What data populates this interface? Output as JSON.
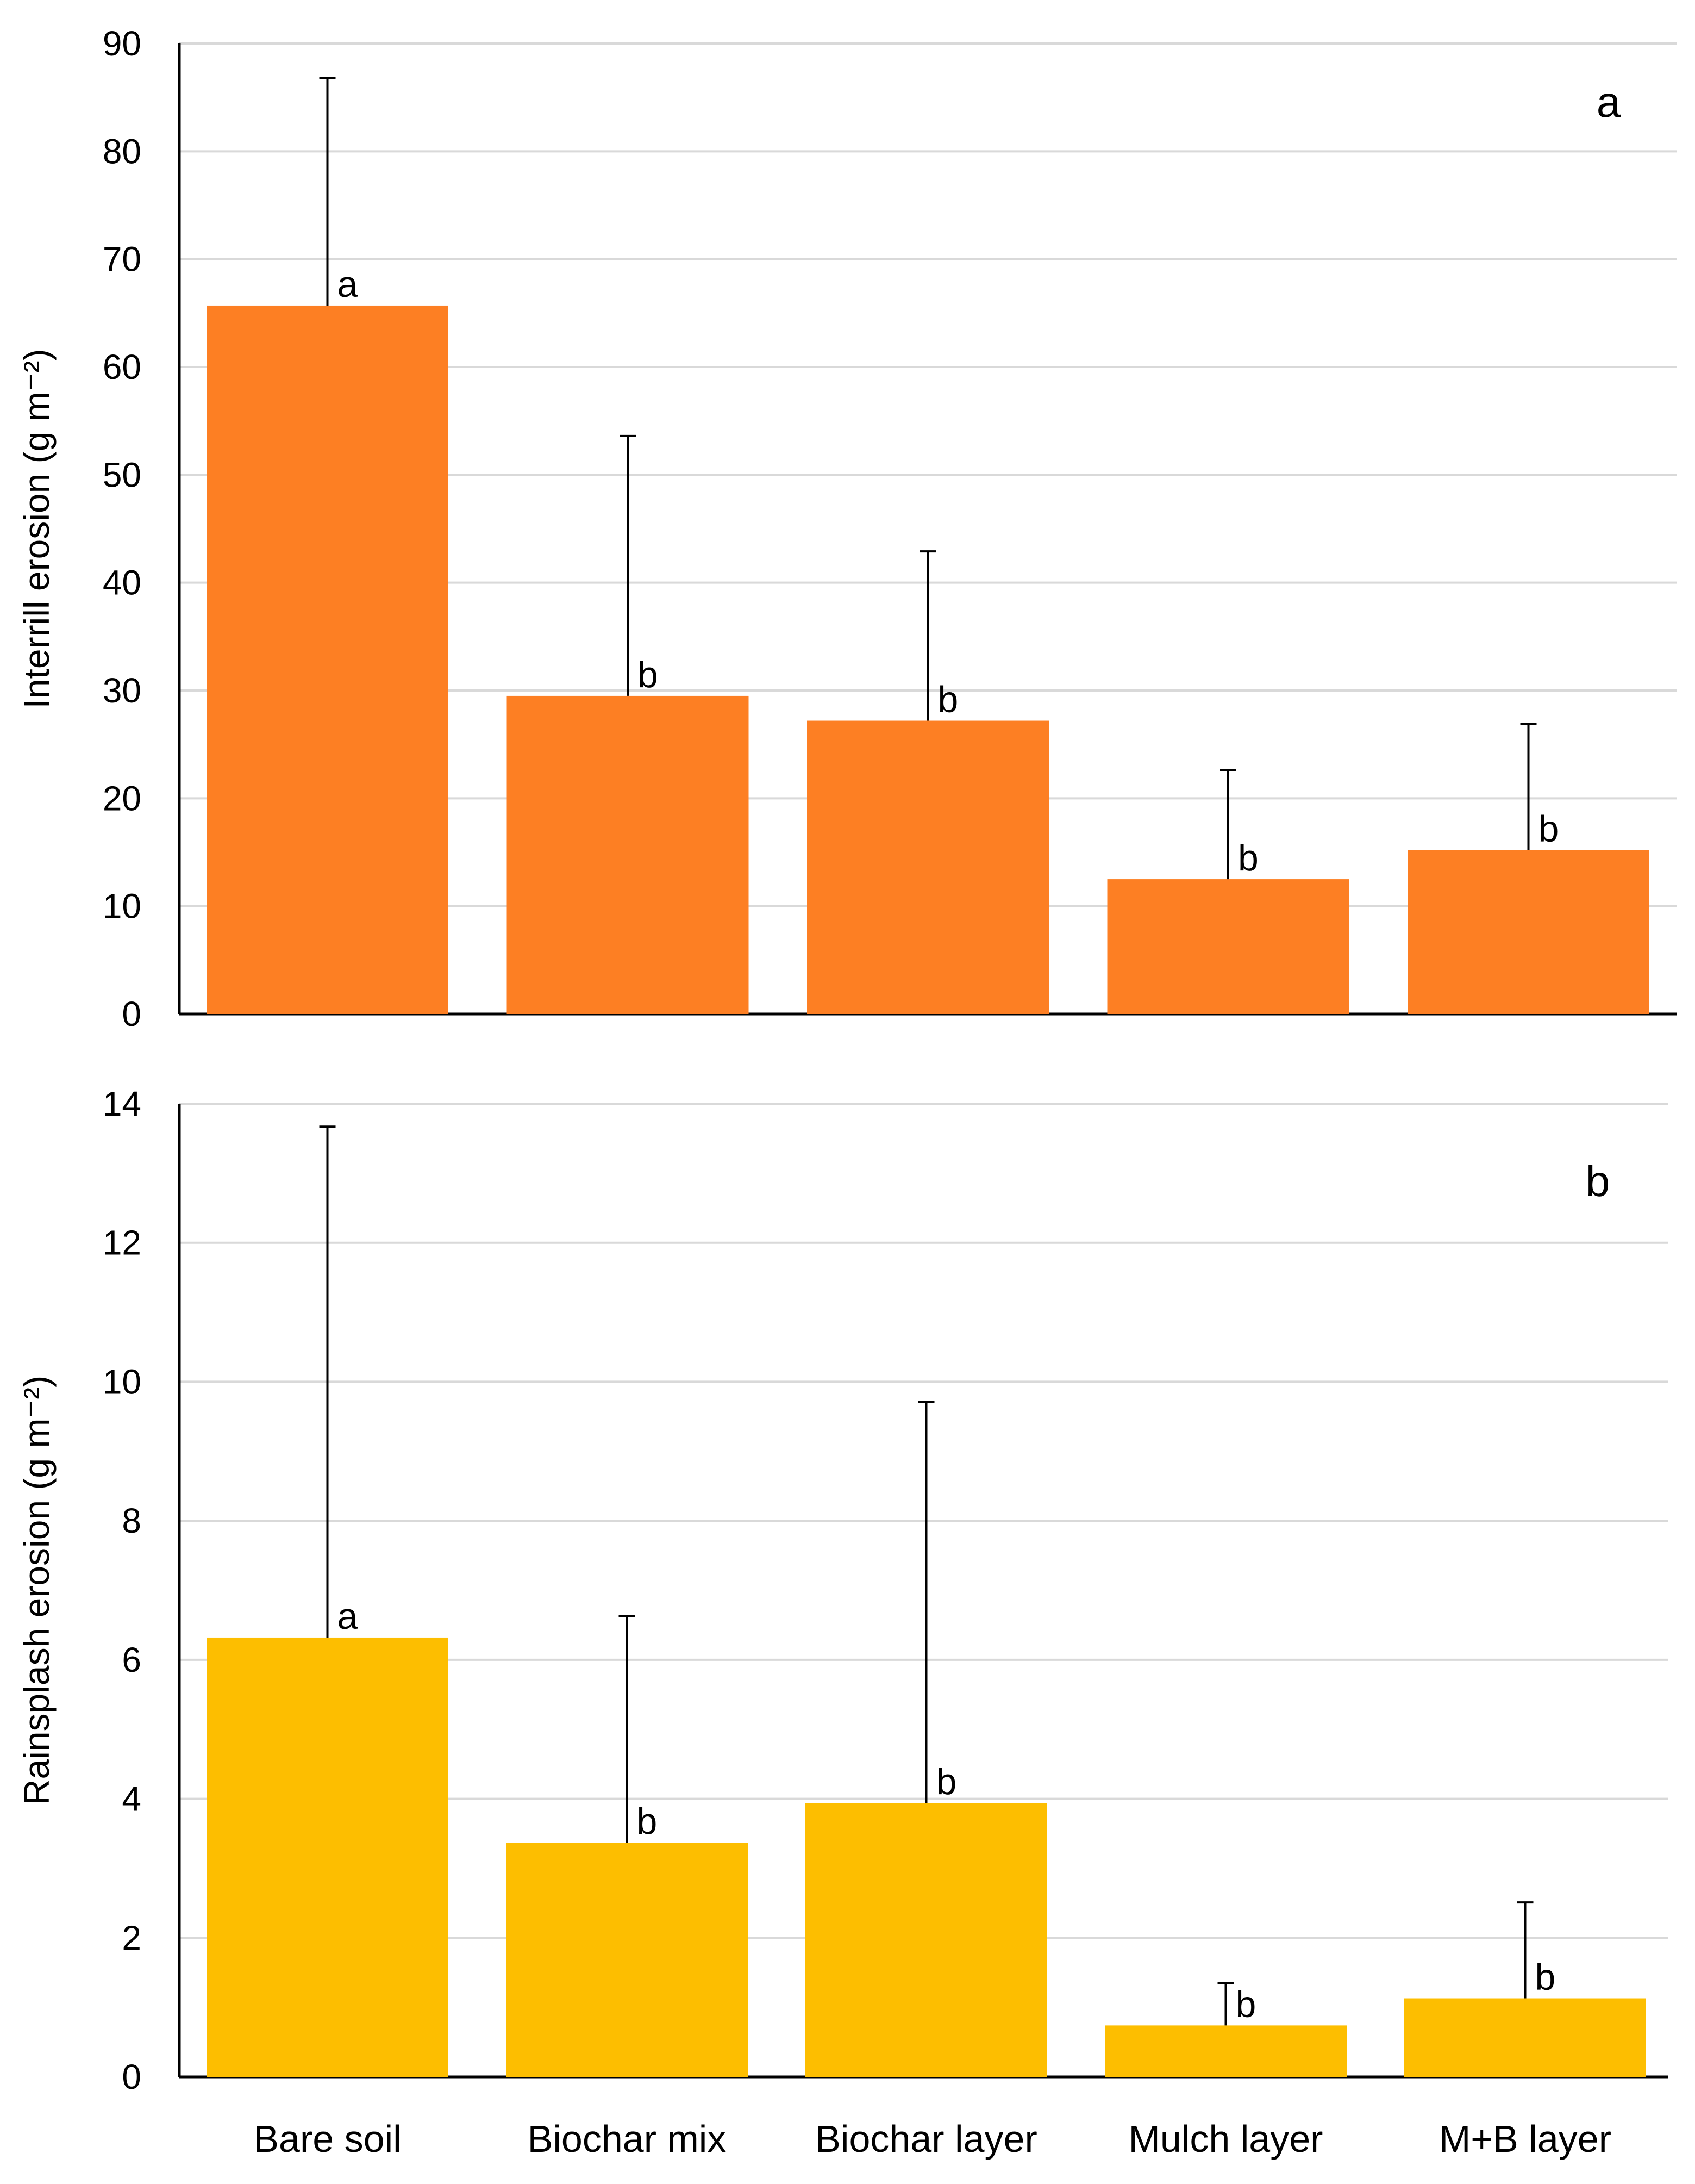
{
  "chart_data": [
    {
      "type": "bar",
      "panel_label": "a",
      "ylabel": "Interrill erosion (g m⁻²)",
      "ylim": [
        0,
        90
      ],
      "yticks": [
        0,
        10,
        20,
        30,
        40,
        50,
        60,
        70,
        80,
        90
      ],
      "grid": true,
      "color": "#fd7f23",
      "categories": [
        "Bare soil",
        "Biochar mix",
        "Biochar layer",
        "Mulch layer",
        "M+B layer"
      ],
      "values": [
        65.7,
        29.5,
        27.2,
        12.5,
        15.2
      ],
      "error_upper": [
        86.8,
        53.6,
        42.9,
        22.6,
        26.9
      ],
      "significance": [
        "a",
        "b",
        "b",
        "b",
        "b"
      ]
    },
    {
      "type": "bar",
      "panel_label": "b",
      "ylabel": "Rainsplash erosion (g m⁻²)",
      "ylim": [
        0,
        14
      ],
      "yticks": [
        0,
        2,
        4,
        6,
        8,
        10,
        12,
        14
      ],
      "grid": true,
      "color": "#fdbe00",
      "categories": [
        "Bare soil",
        "Biochar mix",
        "Biochar layer",
        "Mulch layer",
        "M+B layer"
      ],
      "values": [
        6.32,
        3.37,
        3.94,
        0.74,
        1.13
      ],
      "error_upper": [
        13.67,
        6.63,
        9.71,
        1.35,
        2.51
      ],
      "significance": [
        "a",
        "b",
        "b",
        "b",
        "b"
      ]
    }
  ]
}
